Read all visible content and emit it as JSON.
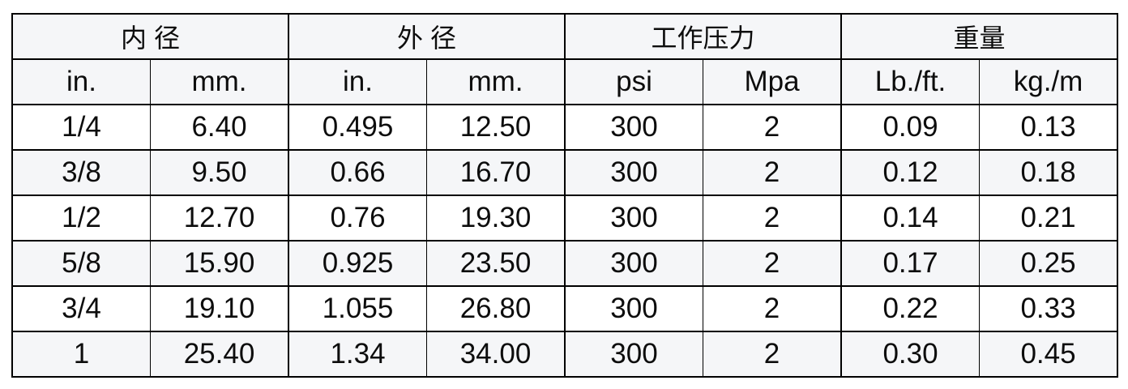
{
  "chart_data": {
    "type": "table",
    "column_groups": [
      {
        "title": "内 径",
        "columns": [
          "in.",
          "mm."
        ]
      },
      {
        "title": "外 径",
        "columns": [
          "in.",
          "mm."
        ]
      },
      {
        "title": "工作压力",
        "columns": [
          "psi",
          "Mpa"
        ]
      },
      {
        "title": "重量",
        "columns": [
          "Lb./ft.",
          "kg./m"
        ]
      }
    ],
    "rows": [
      [
        "1/4",
        "6.40",
        "0.495",
        "12.50",
        "300",
        "2",
        "0.09",
        "0.13"
      ],
      [
        "3/8",
        "9.50",
        "0.66",
        "16.70",
        "300",
        "2",
        "0.12",
        "0.18"
      ],
      [
        "1/2",
        "12.70",
        "0.76",
        "19.30",
        "300",
        "2",
        "0.14",
        "0.21"
      ],
      [
        "5/8",
        "15.90",
        "0.925",
        "23.50",
        "300",
        "2",
        "0.17",
        "0.25"
      ],
      [
        "3/4",
        "19.10",
        "1.055",
        "26.80",
        "300",
        "2",
        "0.22",
        "0.33"
      ],
      [
        "1",
        "25.40",
        "1.34",
        "34.00",
        "300",
        "2",
        "0.30",
        "0.45"
      ]
    ]
  },
  "style": {
    "page_bg": "#ffffff",
    "header_bg": "#f5f6f8",
    "stripe_bg": "#f5f6f8",
    "border_color": "#000000",
    "text_color": "#0d0d0d"
  }
}
